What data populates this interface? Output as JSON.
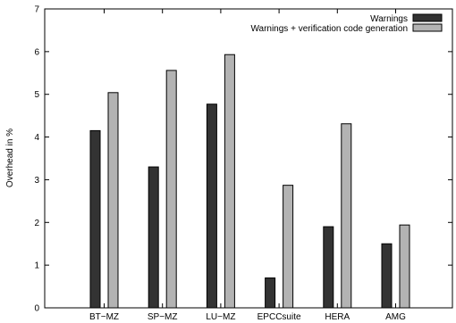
{
  "chart_data": {
    "type": "bar",
    "title": "",
    "xlabel": "",
    "ylabel": "Overhead in %",
    "ylim": [
      0,
      7
    ],
    "yticks": [
      0,
      1,
      2,
      3,
      4,
      5,
      6,
      7
    ],
    "grid": false,
    "legend_position": "top-right",
    "categories": [
      "BT−MZ",
      "SP−MZ",
      "LU−MZ",
      "EPCCsuite",
      "HERA",
      "AMG"
    ],
    "series": [
      {
        "name": "Warnings",
        "color": "#333333",
        "values": [
          4.15,
          3.3,
          4.77,
          0.7,
          1.9,
          1.5
        ]
      },
      {
        "name": "Warnings + verification code generation",
        "color": "#b3b3b3",
        "values": [
          5.04,
          5.56,
          5.93,
          2.87,
          4.31,
          1.94
        ]
      }
    ]
  }
}
